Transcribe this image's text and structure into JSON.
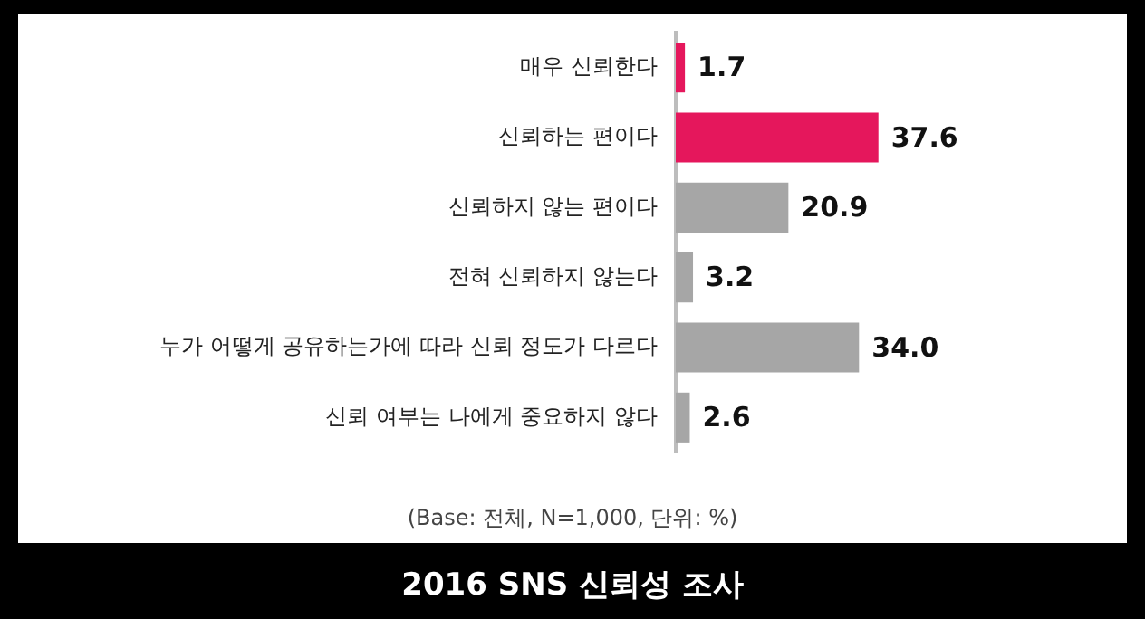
{
  "chart_data": {
    "type": "bar",
    "orientation": "horizontal",
    "title": "2016 SNS 신뢰성 조사",
    "categories": [
      "매우 신뢰한다",
      "신뢰하는 편이다",
      "신뢰하지 않는 편이다",
      "전혀 신뢰하지 않는다",
      "누가 어떻게 공유하는가에 따라 신뢰 정도가 다르다",
      "신뢰 여부는 나에게 중요하지 않다"
    ],
    "values": [
      1.7,
      37.6,
      20.9,
      3.2,
      34.0,
      2.6
    ],
    "value_labels": [
      "1.7",
      "37.6",
      "20.9",
      "3.2",
      "34.0",
      "2.6"
    ],
    "colors": [
      "#e5175c",
      "#e5175c",
      "#a6a6a6",
      "#a6a6a6",
      "#a6a6a6",
      "#a6a6a6"
    ],
    "tick_labels": "y",
    "grid": false,
    "legend": false,
    "annotations": [
      "(Base: 전체, N=1,000, 단위: %)"
    ]
  }
}
